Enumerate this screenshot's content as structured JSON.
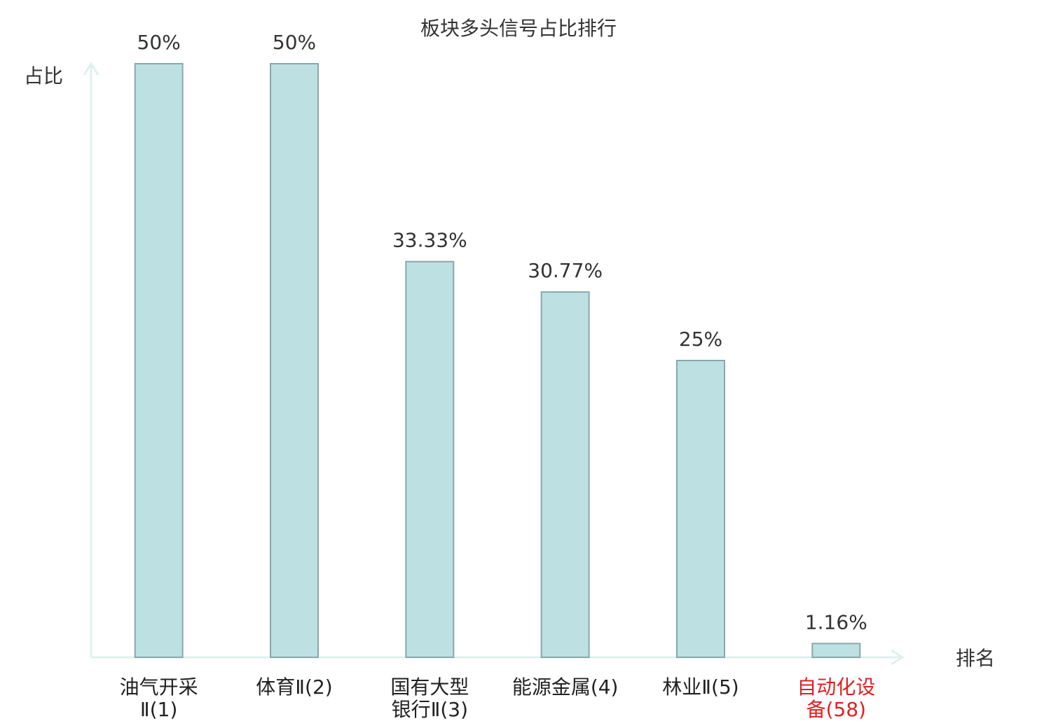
{
  "chart_data": {
    "type": "bar",
    "title": "板块多头信号占比排行",
    "y_label": "占比",
    "x_label": "排名",
    "categories": [
      "油气开采\nⅡ(1)",
      "体育Ⅱ(2)",
      "国有大型\n银行Ⅱ(3)",
      "能源金属(4)",
      "林业Ⅱ(5)",
      "自动化设\n备(58)"
    ],
    "values": [
      50,
      50,
      33.33,
      30.77,
      25,
      1.16
    ],
    "value_labels": [
      "50%",
      "50%",
      "33.33%",
      "30.77%",
      "25%",
      "1.16%"
    ],
    "color": "#bde0e3",
    "edge_color": "#8aa8ab",
    "category_label_colors": [
      "#222222",
      "#222222",
      "#222222",
      "#222222",
      "#222222",
      "#e02020"
    ],
    "ylim": [
      0,
      50
    ]
  }
}
